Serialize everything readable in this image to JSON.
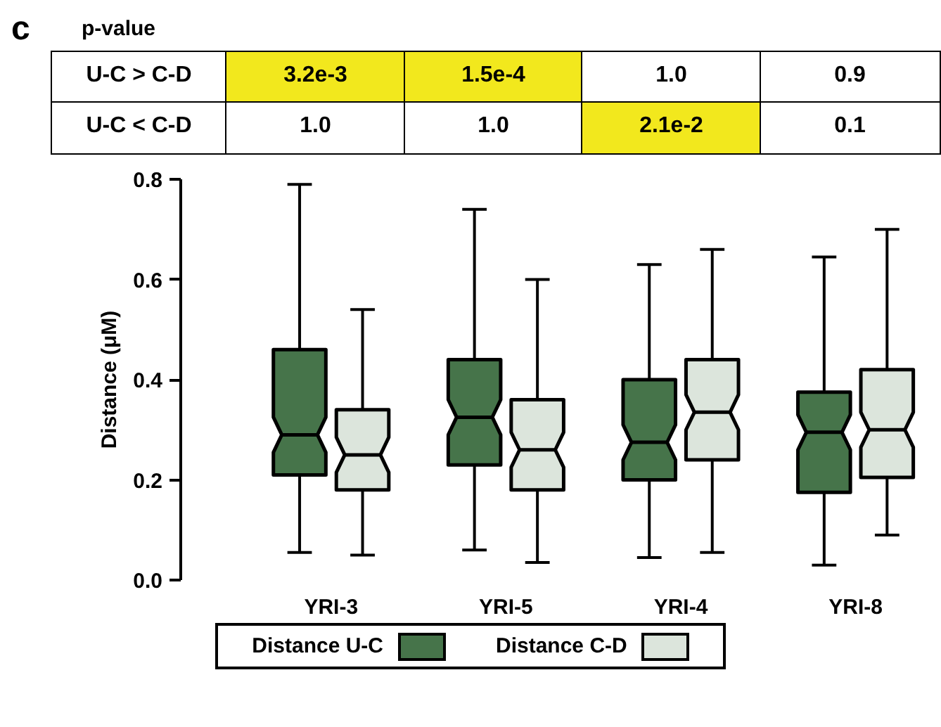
{
  "chart_data": {
    "type": "box",
    "ylabel": "Distance (μM)",
    "categories": [
      "YRI-3",
      "YRI-5",
      "YRI-4",
      "YRI-8"
    ],
    "series": [
      {
        "name": "Distance U-C",
        "color": "#46744a",
        "boxes": [
          {
            "low": 0.055,
            "q1": 0.21,
            "median": 0.29,
            "q3": 0.46,
            "high": 0.79
          },
          {
            "low": 0.06,
            "q1": 0.23,
            "median": 0.325,
            "q3": 0.44,
            "high": 0.74
          },
          {
            "low": 0.045,
            "q1": 0.2,
            "median": 0.275,
            "q3": 0.4,
            "high": 0.63
          },
          {
            "low": 0.03,
            "q1": 0.175,
            "median": 0.295,
            "q3": 0.375,
            "high": 0.645
          }
        ]
      },
      {
        "name": "Distance C-D",
        "color": "#dce5dc",
        "boxes": [
          {
            "low": 0.05,
            "q1": 0.18,
            "median": 0.25,
            "q3": 0.34,
            "high": 0.54
          },
          {
            "low": 0.035,
            "q1": 0.18,
            "median": 0.26,
            "q3": 0.36,
            "high": 0.6
          },
          {
            "low": 0.055,
            "q1": 0.24,
            "median": 0.335,
            "q3": 0.44,
            "high": 0.66
          },
          {
            "low": 0.09,
            "q1": 0.205,
            "median": 0.3,
            "q3": 0.42,
            "high": 0.7
          }
        ]
      }
    ],
    "ylim": [
      0,
      0.8
    ],
    "yticks": [
      {
        "value": 0,
        "label": "0.0"
      },
      0.2,
      0.4,
      0.6,
      0.8
    ],
    "grid": false,
    "legend": "bottom",
    "annotations": [
      "c",
      "p-value",
      "U-C > C-D",
      "3.2e-3",
      "1.5e-4",
      "1.0",
      "0.9",
      "U-C < C-D",
      "1.0",
      "1.0",
      "2.1e-2",
      "0.1"
    ]
  }
}
